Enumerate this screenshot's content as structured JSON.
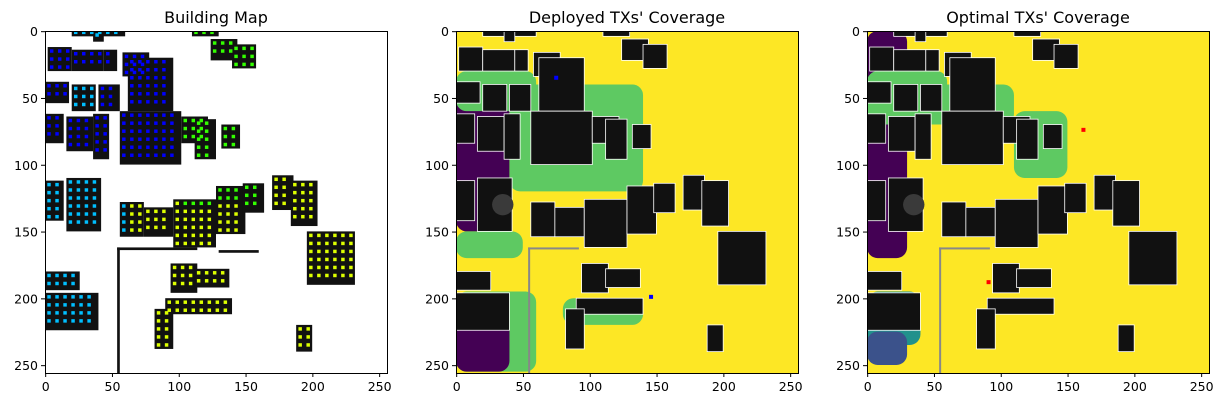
{
  "chart_data": [
    {
      "type": "heatmap",
      "title": "Building Map",
      "xlabel": "",
      "ylabel": "",
      "xlim": [
        0,
        256
      ],
      "ylim": [
        256,
        0
      ],
      "xticks": [
        0,
        50,
        100,
        150,
        200,
        250
      ],
      "yticks": [
        0,
        50,
        100,
        150,
        200,
        250
      ],
      "grid": false
    },
    {
      "type": "heatmap",
      "title": "Deployed TXs' Coverage",
      "xlabel": "",
      "ylabel": "",
      "xlim": [
        0,
        256
      ],
      "ylim": [
        256,
        0
      ],
      "xticks": [
        0,
        50,
        100,
        150,
        200,
        250
      ],
      "yticks": [
        0,
        50,
        100,
        150,
        200,
        250
      ],
      "grid": false,
      "tx_markers": [
        {
          "x": 75,
          "y": 35,
          "color": "#0000ff"
        },
        {
          "x": 146,
          "y": 199,
          "color": "#0000ff"
        }
      ]
    },
    {
      "type": "heatmap",
      "title": "Optimal TXs' Coverage",
      "xlabel": "",
      "ylabel": "",
      "xlim": [
        0,
        256
      ],
      "ylim": [
        256,
        0
      ],
      "xticks": [
        0,
        50,
        100,
        150,
        200,
        250
      ],
      "yticks": [
        0,
        50,
        100,
        150,
        200,
        250
      ],
      "grid": false,
      "tx_markers": [
        {
          "x": 162,
          "y": 74,
          "color": "#ff0000"
        },
        {
          "x": 91,
          "y": 188,
          "color": "#ff0000"
        }
      ]
    }
  ],
  "colors": {
    "building": "#111111",
    "building_shade": "#3a3a3a",
    "background_white": "#ffffff",
    "coverage_high": "#fde725",
    "coverage_mid": "#5ec962",
    "coverage_low": "#21918c",
    "coverage_weak": "#3b528b",
    "coverage_none": "#440154",
    "node_blue": "#0000ff",
    "node_cyan": "#00bfff",
    "node_green": "#33ff00",
    "node_yellow": "#ddff00"
  }
}
